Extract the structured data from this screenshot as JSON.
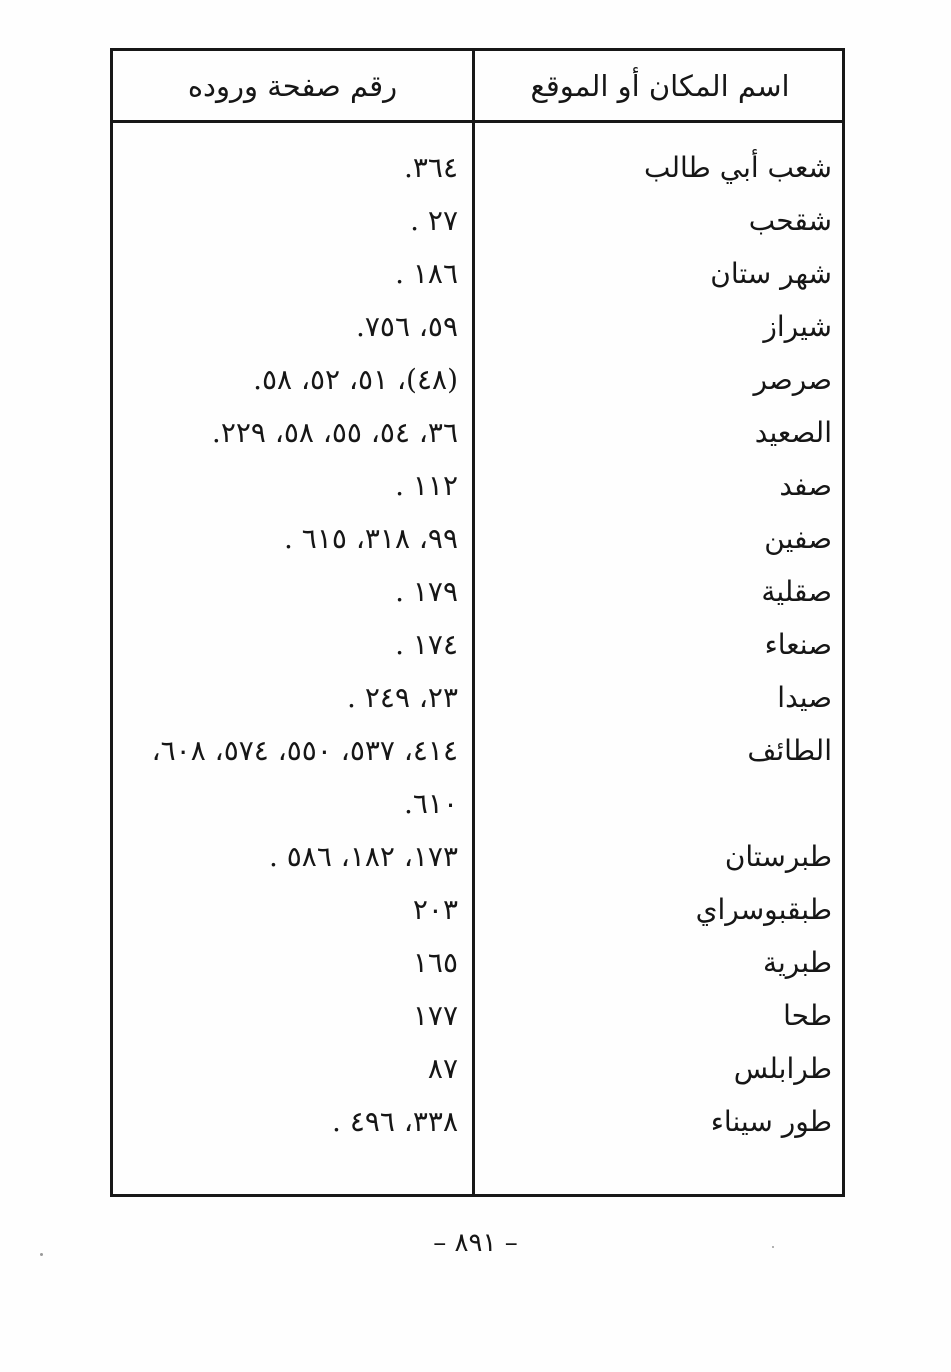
{
  "colors": {
    "ink": "#171717",
    "paper": "#fefefe"
  },
  "table": {
    "header": {
      "pages_label": "رقم صفحة وروده",
      "place_label": "اسم المكان أو الموقع"
    },
    "rows": [
      {
        "name": "شعب أبي طالب",
        "pages": "٣٦٤."
      },
      {
        "name": "شقحب",
        "pages": "٢٧ ."
      },
      {
        "name": "شهر ستان",
        "pages": "١٨٦ ."
      },
      {
        "name": "شيراز",
        "pages": "٥٩، ٧٥٦."
      },
      {
        "name": "صرصر",
        "pages": "(٤٨)، ٥١، ٥٢، ٥٨."
      },
      {
        "name": "الصعيد",
        "pages": "٣٦، ٥٤، ٥٥، ٥٨، ٢٢٩."
      },
      {
        "name": "صفد",
        "pages": "١١٢ ."
      },
      {
        "name": "صفين",
        "pages": "٩٩، ٣١٨، ٦١٥ ."
      },
      {
        "name": "صقلية",
        "pages": "١٧٩ ."
      },
      {
        "name": "صنعاء",
        "pages": "١٧٤ ."
      },
      {
        "name": "صيدا",
        "pages": "٢٣، ٢٤٩ ."
      },
      {
        "name": "الطائف",
        "pages": "٤١٤، ٥٣٧، ٥٥٠، ٥٧٤، ٦٠٨،",
        "pages2": "٦١٠."
      },
      {
        "name": "طبرستان",
        "pages": "١٧٣، ١٨٢، ٥٨٦ ."
      },
      {
        "name": "طبقبوسراي",
        "pages": "٢٠٣"
      },
      {
        "name": "طبرية",
        "pages": "١٦٥"
      },
      {
        "name": "طحا",
        "pages": "١٧٧"
      },
      {
        "name": "طرابلس",
        "pages": "٨٧"
      },
      {
        "name": "طور سيناء",
        "pages": "٣٣٨، ٤٩٦ ."
      }
    ]
  },
  "footer": {
    "page_number": "– ٨٩١ –"
  }
}
